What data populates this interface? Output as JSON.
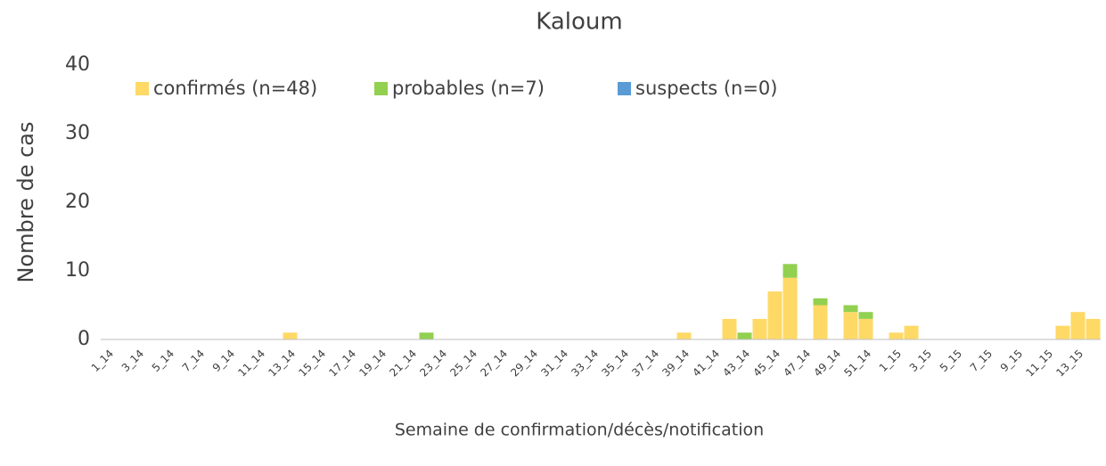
{
  "chart_data": {
    "type": "bar",
    "stacked": true,
    "title": "Kaloum",
    "x_label": "Semaine de confirmation/décès/notification",
    "y_label": "Nombre de cas",
    "categories": [
      "1_14",
      null,
      "3_14",
      null,
      "5_14",
      null,
      "7_14",
      null,
      "9_14",
      null,
      "11_14",
      null,
      "13_14",
      null,
      "15_14",
      null,
      "17_14",
      null,
      "19_14",
      null,
      "21_14",
      null,
      "23_14",
      null,
      "25_14",
      null,
      "27_14",
      null,
      "29_14",
      null,
      "31_14",
      null,
      "33_14",
      null,
      "35_14",
      null,
      "37_14",
      null,
      "39_14",
      null,
      "41_14",
      null,
      "43_14",
      null,
      "45_14",
      null,
      "47_14",
      null,
      "49_14",
      null,
      "51_14",
      null,
      "1_15",
      null,
      "3_15",
      null,
      "5_15",
      null,
      "7_15",
      null,
      "9_15",
      null,
      "11_15",
      null,
      "13_15",
      null
    ],
    "series": [
      {
        "name": "confirmés (n=48)",
        "color": "#ffd966",
        "values": [
          0,
          0,
          0,
          0,
          0,
          0,
          0,
          0,
          0,
          0,
          0,
          0,
          1,
          0,
          0,
          0,
          0,
          0,
          0,
          0,
          0,
          0,
          0,
          0,
          0,
          0,
          0,
          0,
          0,
          0,
          0,
          0,
          0,
          0,
          0,
          0,
          0,
          0,
          1,
          0,
          0,
          3,
          0,
          3,
          7,
          9,
          0,
          5,
          0,
          4,
          3,
          0,
          1,
          2,
          0,
          0,
          0,
          0,
          0,
          0,
          0,
          0,
          0,
          2,
          4,
          3
        ]
      },
      {
        "name": "probables (n=7)",
        "color": "#92d050",
        "values": [
          0,
          0,
          0,
          0,
          0,
          0,
          0,
          0,
          0,
          0,
          0,
          0,
          0,
          0,
          0,
          0,
          0,
          0,
          0,
          0,
          0,
          1,
          0,
          0,
          0,
          0,
          0,
          0,
          0,
          0,
          0,
          0,
          0,
          0,
          0,
          0,
          0,
          0,
          0,
          0,
          0,
          0,
          1,
          0,
          0,
          2,
          0,
          1,
          0,
          1,
          1,
          0,
          0,
          0,
          0,
          0,
          0,
          0,
          0,
          0,
          0,
          0,
          0,
          0,
          0,
          0
        ]
      },
      {
        "name": "suspects (n=0)",
        "color": "#5b9bd5",
        "values": [
          0,
          0,
          0,
          0,
          0,
          0,
          0,
          0,
          0,
          0,
          0,
          0,
          0,
          0,
          0,
          0,
          0,
          0,
          0,
          0,
          0,
          0,
          0,
          0,
          0,
          0,
          0,
          0,
          0,
          0,
          0,
          0,
          0,
          0,
          0,
          0,
          0,
          0,
          0,
          0,
          0,
          0,
          0,
          0,
          0,
          0,
          0,
          0,
          0,
          0,
          0,
          0,
          0,
          0,
          0,
          0,
          0,
          0,
          0,
          0,
          0,
          0,
          0,
          0,
          0,
          0
        ]
      }
    ],
    "ylim": [
      0,
      40
    ],
    "yticks": [
      0,
      10,
      20,
      30,
      40
    ],
    "grid": false,
    "legend": "top-left"
  }
}
